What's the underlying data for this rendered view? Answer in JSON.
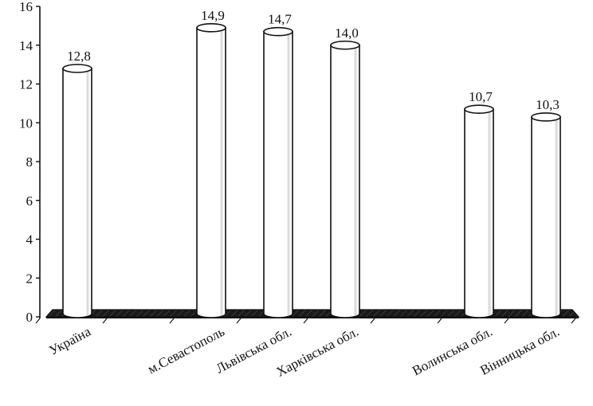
{
  "chart_data": {
    "type": "bar",
    "categories": [
      "Україна",
      "",
      "м.Севастополь",
      "Львівська обл.",
      "Харківська обл.",
      "",
      "Волинська обл.",
      "Вінницька обл."
    ],
    "values": [
      12.8,
      null,
      14.9,
      14.7,
      14.0,
      null,
      10.7,
      10.3
    ],
    "data_labels": [
      "12,8",
      "",
      "14,9",
      "14,7",
      "14,0",
      "",
      "10,7",
      "10,3"
    ],
    "y_ticks": [
      "0",
      "2",
      "4",
      "6",
      "8",
      "10",
      "12",
      "14",
      "16"
    ],
    "ylim": [
      0,
      16
    ],
    "grid": false,
    "style": "3d-cylinder"
  }
}
